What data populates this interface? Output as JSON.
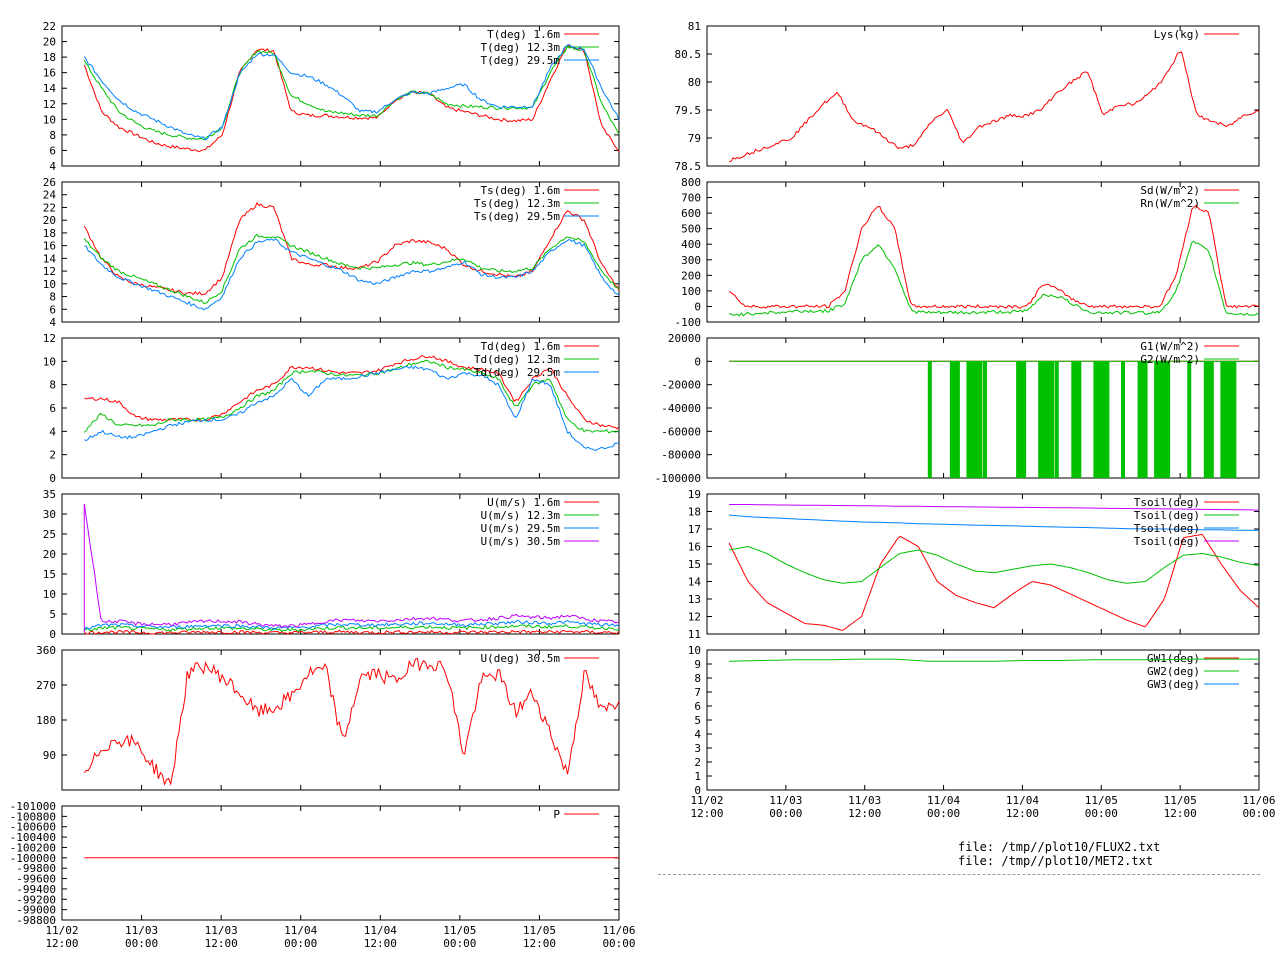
{
  "colors": {
    "red": "#ff0000",
    "green": "#00c000",
    "blue": "#0080ff",
    "purple": "#c000ff",
    "axis": "#000000"
  },
  "x_ticks": [
    "11/02\n12:00",
    "11/03\n00:00",
    "11/03\n12:00",
    "11/04\n00:00",
    "11/04\n12:00",
    "11/05\n00:00",
    "11/05\n12:00",
    "11/06\n00:00"
  ],
  "files": {
    "line1": "file: /tmp//plot10/FLUX2.txt",
    "line2": "file: /tmp//plot10/MET2.txt"
  },
  "chart_data": [
    {
      "id": "air-temperature",
      "type": "line",
      "column": "left",
      "row": 0,
      "ylim": [
        4,
        22
      ],
      "y_ticks": [
        4,
        6,
        8,
        10,
        12,
        14,
        16,
        18,
        20,
        22
      ],
      "series": [
        {
          "name": "T(deg)  1.6m",
          "color": "red",
          "values": [
            17,
            11,
            9,
            8,
            7,
            6.5,
            6.2,
            6,
            8,
            16,
            19,
            18.8,
            11,
            10.5,
            10.5,
            10.3,
            10.2,
            10.2,
            12.5,
            13.5,
            13.3,
            11.5,
            11,
            10.5,
            10,
            9.8,
            10,
            15,
            19.6,
            18.8,
            9,
            6
          ]
        },
        {
          "name": "T(deg) 12.3m",
          "color": "green",
          "values": [
            17.5,
            14,
            11,
            9.5,
            8.5,
            8,
            7.6,
            7.5,
            9,
            16,
            18.8,
            18.5,
            13,
            12,
            11,
            10.8,
            10.5,
            10.5,
            12.5,
            13.5,
            13.3,
            12,
            11.7,
            11.6,
            11.5,
            11.5,
            11.5,
            16,
            19.3,
            18.8,
            12,
            8
          ]
        },
        {
          "name": "T(deg) 29.5m",
          "color": "blue",
          "values": [
            18,
            15,
            12.5,
            11,
            10,
            9,
            8,
            7.5,
            9,
            15.8,
            18.4,
            18.3,
            16,
            15.5,
            14.5,
            13,
            11,
            11,
            12.5,
            13.5,
            13.3,
            14,
            14.5,
            12.5,
            11.6,
            11.6,
            11.7,
            16.5,
            19.5,
            19,
            14,
            10
          ]
        }
      ]
    },
    {
      "id": "sonic-temperature",
      "type": "line",
      "column": "left",
      "row": 1,
      "ylim": [
        4,
        26
      ],
      "y_ticks": [
        4,
        6,
        8,
        10,
        12,
        14,
        16,
        18,
        20,
        22,
        24,
        26
      ],
      "series": [
        {
          "name": "Ts(deg)  1.6m",
          "color": "red",
          "values": [
            19,
            14,
            11,
            10,
            9.5,
            9,
            8.5,
            8.5,
            11,
            20,
            22.5,
            22,
            14,
            13,
            13,
            12.5,
            12.5,
            13.5,
            16,
            16.8,
            16.5,
            15.5,
            13,
            12,
            11.5,
            11,
            12,
            17,
            21.5,
            20,
            13,
            9
          ]
        },
        {
          "name": "Ts(deg) 12.3m",
          "color": "green",
          "values": [
            17,
            14,
            12,
            11,
            10,
            9,
            8,
            7,
            9,
            15.5,
            17.5,
            17.5,
            16,
            15,
            14,
            13,
            12.5,
            12.5,
            13,
            13.3,
            13,
            13.5,
            14,
            12.5,
            12,
            12,
            12.5,
            15.5,
            17.5,
            16.5,
            12,
            9
          ]
        },
        {
          "name": "Ts(deg) 29.5m",
          "color": "blue",
          "values": [
            16,
            13,
            11,
            10,
            9,
            8,
            7,
            6,
            8,
            14,
            16.5,
            17,
            15,
            14,
            13,
            12,
            10.5,
            10,
            11,
            12,
            12,
            12.5,
            13.5,
            11.5,
            11,
            11,
            12,
            15,
            17,
            16,
            11,
            8
          ]
        }
      ]
    },
    {
      "id": "dew-point",
      "type": "line",
      "column": "left",
      "row": 2,
      "ylim": [
        0,
        12
      ],
      "y_ticks": [
        0,
        2,
        4,
        6,
        8,
        10,
        12
      ],
      "series": [
        {
          "name": "Td(deg)  1.6m",
          "color": "red",
          "values": [
            6.8,
            6.8,
            6.5,
            5.2,
            5,
            5,
            5,
            5,
            5.5,
            6.5,
            7.5,
            8,
            9.5,
            9.5,
            9.2,
            9,
            9,
            9.2,
            9.8,
            10.2,
            10.5,
            10,
            9.5,
            9.3,
            9,
            6.5,
            8.5,
            9.5,
            7,
            5,
            4.5,
            4.3
          ]
        },
        {
          "name": "Td(deg) 12.3m",
          "color": "green",
          "values": [
            4,
            5.5,
            4.5,
            4.5,
            4.5,
            5,
            5,
            5,
            5.2,
            6,
            7,
            7.5,
            9,
            9.2,
            9,
            8.8,
            8.8,
            9,
            9.3,
            9.8,
            10,
            9.5,
            9.3,
            9,
            8.5,
            6,
            8,
            8.5,
            5,
            4,
            4,
            4
          ]
        },
        {
          "name": "Td(deg) 29.5m",
          "color": "blue",
          "values": [
            3.2,
            4,
            3.5,
            3.5,
            4,
            4.5,
            4.8,
            5,
            5,
            5.5,
            6.5,
            7,
            8.5,
            7,
            8.5,
            8.5,
            8.7,
            9,
            9.3,
            9.5,
            9.3,
            8.5,
            9,
            8.8,
            8,
            5,
            8.5,
            8,
            4,
            2.5,
            2.5,
            3
          ]
        }
      ]
    },
    {
      "id": "wind-speed",
      "type": "line",
      "column": "left",
      "row": 3,
      "ylim": [
        0,
        35
      ],
      "y_ticks": [
        0,
        5,
        10,
        15,
        20,
        25,
        30,
        35
      ],
      "series": [
        {
          "name": "U(m/s)  1.6m",
          "color": "red",
          "values": [
            0.3,
            0.5,
            0.5,
            0.4,
            0.3,
            0.3,
            0.4,
            0.5,
            0.5,
            0.5,
            0.4,
            0.3,
            0.3,
            0.4,
            0.5,
            0.5,
            0.4,
            0.4,
            0.5,
            0.5,
            0.5,
            0.4,
            0.4,
            0.5,
            0.5,
            0.6,
            0.5,
            0.5,
            0.6,
            0.5,
            0.4,
            0.4
          ]
        },
        {
          "name": "U(m/s) 12.3m",
          "color": "green",
          "values": [
            0.8,
            1.5,
            1.6,
            1.4,
            1.2,
            1.1,
            1.3,
            1.5,
            1.5,
            1.4,
            1.2,
            1,
            1,
            1.2,
            1.5,
            1.6,
            1.5,
            1.5,
            1.6,
            1.7,
            1.8,
            1.6,
            1.5,
            1.7,
            1.8,
            2,
            1.9,
            1.8,
            2,
            1.7,
            1.5,
            1.4
          ]
        },
        {
          "name": "U(m/s) 29.5m",
          "color": "blue",
          "values": [
            1.2,
            2.2,
            2.3,
            2,
            1.8,
            1.7,
            1.9,
            2.1,
            2.1,
            2,
            1.8,
            1.5,
            1.5,
            1.8,
            2.2,
            2.4,
            2.3,
            2.3,
            2.4,
            2.6,
            2.7,
            2.5,
            2.3,
            2.5,
            2.7,
            3,
            2.9,
            2.7,
            3,
            2.6,
            2.3,
            2.1
          ]
        },
        {
          "name": "U(m/s) 30.5m",
          "color": "purple",
          "values": [
            32.5,
            3,
            3.2,
            2.6,
            2.4,
            2.5,
            2.8,
            3.2,
            3.2,
            3,
            2.5,
            2,
            2,
            2.4,
            3.2,
            3.5,
            3.3,
            3.3,
            3.5,
            3.8,
            4,
            3.6,
            3.3,
            3.6,
            4,
            4.5,
            4.2,
            4,
            4.6,
            3.8,
            3.2,
            3
          ]
        }
      ]
    },
    {
      "id": "wind-direction",
      "type": "line",
      "column": "left",
      "row": 4,
      "ylim": [
        0,
        360
      ],
      "y_ticks": [
        90,
        180,
        270,
        360
      ],
      "series": [
        {
          "name": "U(deg) 30.5m",
          "color": "red",
          "values": [
            30,
            110,
            130,
            120,
            60,
            10,
            300,
            320,
            290,
            250,
            200,
            210,
            240,
            300,
            310,
            120,
            290,
            300,
            280,
            320,
            330,
            310,
            90,
            280,
            300,
            200,
            250,
            150,
            40,
            300,
            200,
            230
          ]
        }
      ]
    },
    {
      "id": "pressure",
      "type": "line",
      "column": "left",
      "row": 5,
      "ylim": [
        -101000,
        -98800
      ],
      "invert_y": true,
      "y_ticks": [
        -101000,
        -100800,
        -100600,
        -100400,
        -100200,
        -100000,
        -99800,
        -99600,
        -99400,
        -99200,
        -99000,
        -98800
      ],
      "series": [
        {
          "name": "P",
          "color": "red",
          "flat": -100000
        }
      ]
    },
    {
      "id": "lysimeter",
      "type": "line",
      "column": "right",
      "row": 0,
      "ylim": [
        78.5,
        81
      ],
      "y_ticks": [
        78.5,
        79,
        79.5,
        80,
        80.5,
        81
      ],
      "series": [
        {
          "name": "Lys(kg)",
          "color": "red",
          "values": [
            78.6,
            78.7,
            78.8,
            78.9,
            79,
            79.3,
            79.6,
            79.8,
            79.3,
            79.2,
            79,
            78.8,
            78.9,
            79.3,
            79.5,
            78.9,
            79.2,
            79.3,
            79.4,
            79.4,
            79.5,
            79.8,
            80,
            80.2,
            79.4,
            79.6,
            79.6,
            79.8,
            80.1,
            80.6,
            79.4,
            79.3,
            79.2,
            79.4,
            79.5
          ]
        }
      ]
    },
    {
      "id": "radiation",
      "type": "line",
      "column": "right",
      "row": 1,
      "ylim": [
        -100,
        800
      ],
      "y_ticks": [
        -100,
        0,
        100,
        200,
        300,
        400,
        500,
        600,
        700,
        800
      ],
      "series": [
        {
          "name": "Sd(W/m^2)",
          "color": "red",
          "values": [
            100,
            0,
            0,
            0,
            0,
            0,
            0,
            100,
            500,
            650,
            500,
            0,
            0,
            0,
            0,
            0,
            0,
            0,
            0,
            150,
            100,
            30,
            0,
            0,
            0,
            0,
            0,
            200,
            650,
            600,
            0,
            0,
            0
          ]
        },
        {
          "name": "Rn(W/m^2)",
          "color": "green",
          "values": [
            -50,
            -50,
            -40,
            -40,
            -30,
            -30,
            -30,
            20,
            300,
            400,
            250,
            -30,
            -40,
            -40,
            -40,
            -40,
            -35,
            -35,
            -30,
            80,
            60,
            0,
            -40,
            -40,
            -40,
            -40,
            -40,
            100,
            420,
            350,
            -40,
            -50,
            -50
          ]
        }
      ]
    },
    {
      "id": "ground-heat-flux",
      "type": "line",
      "column": "right",
      "row": 2,
      "ylim": [
        -100000,
        20000
      ],
      "y_ticks": [
        -100000,
        -80000,
        -60000,
        -40000,
        -20000,
        0,
        20000
      ],
      "series": [
        {
          "name": "G1(W/m^2)",
          "color": "red",
          "flat": 0
        },
        {
          "name": "G2(W/m^2)",
          "color": "green",
          "flat": 0,
          "spikes_from": [
            0.4,
            0.44,
            0.47,
            0.5,
            0.56,
            0.6,
            0.63,
            0.66,
            0.7,
            0.75,
            0.78,
            0.81,
            0.87,
            0.9,
            0.93
          ],
          "spike_to": -100000
        }
      ]
    },
    {
      "id": "soil-temperature",
      "type": "line",
      "column": "right",
      "row": 3,
      "ylim": [
        11,
        19
      ],
      "y_ticks": [
        11,
        12,
        13,
        14,
        15,
        16,
        17,
        18,
        19
      ],
      "series": [
        {
          "name": "Tsoil(deg)",
          "color": "red",
          "values": [
            16.2,
            14,
            12.8,
            12.2,
            11.6,
            11.5,
            11.2,
            12,
            15,
            16.6,
            16,
            14,
            13.2,
            12.8,
            12.5,
            13.3,
            14,
            13.8,
            13.3,
            12.8,
            12.3,
            11.8,
            11.4,
            13,
            16.5,
            16.7,
            15,
            13.5,
            12.5
          ]
        },
        {
          "name": "Tsoil(deg)",
          "color": "green",
          "values": [
            15.8,
            16,
            15.6,
            15,
            14.5,
            14.1,
            13.9,
            14,
            14.8,
            15.6,
            15.8,
            15.5,
            15,
            14.6,
            14.5,
            14.7,
            14.9,
            15,
            14.8,
            14.5,
            14.1,
            13.9,
            14,
            14.8,
            15.5,
            15.6,
            15.4,
            15.1,
            14.9
          ]
        },
        {
          "name": "Tsoil(deg)",
          "color": "blue",
          "values": [
            17.8,
            17.7,
            17.65,
            17.6,
            17.55,
            17.5,
            17.45,
            17.4,
            17.38,
            17.35,
            17.3,
            17.28,
            17.25,
            17.22,
            17.2,
            17.18,
            17.15,
            17.12,
            17.1,
            17.08,
            17.05,
            17.02,
            17,
            17,
            16.98,
            16.96,
            16.95,
            16.93,
            16.92
          ]
        },
        {
          "name": "Tsoil(deg)",
          "color": "purple",
          "values": [
            18.4,
            18.4,
            18.38,
            18.37,
            18.36,
            18.35,
            18.34,
            18.33,
            18.32,
            18.3,
            18.3,
            18.28,
            18.27,
            18.26,
            18.25,
            18.24,
            18.23,
            18.22,
            18.21,
            18.2,
            18.18,
            18.17,
            18.16,
            18.15,
            18.14,
            18.12,
            18.11,
            18.1,
            18.08
          ]
        }
      ]
    },
    {
      "id": "groundwater",
      "type": "line",
      "column": "right",
      "row": 4,
      "ylim": [
        0,
        10
      ],
      "y_ticks": [
        0,
        1,
        2,
        3,
        4,
        5,
        6,
        7,
        8,
        9,
        10
      ],
      "series": [
        {
          "name": "GW1(deg)",
          "color": "red",
          "values": []
        },
        {
          "name": "GW2(deg)",
          "color": "green",
          "values": [
            9.2,
            9.25,
            9.3,
            9.3,
            9.35,
            9.35,
            9.2,
            9.2,
            9.2,
            9.25,
            9.25,
            9.3,
            9.3,
            9.3,
            9.35,
            9.35,
            9.35
          ]
        },
        {
          "name": "GW3(deg)",
          "color": "blue",
          "values": []
        }
      ]
    }
  ]
}
